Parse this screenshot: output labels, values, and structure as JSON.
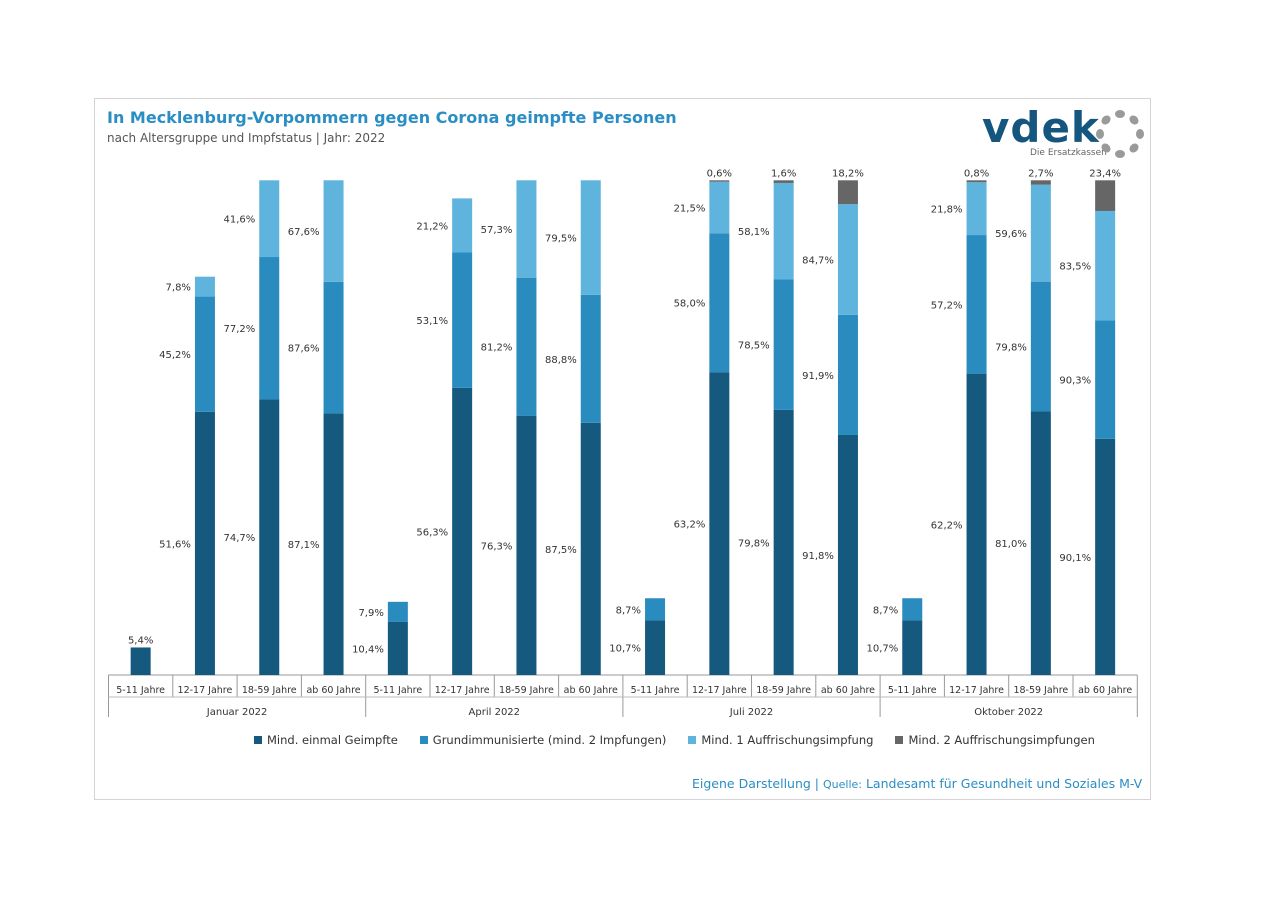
{
  "title": "In Mecklenburg-Vorpommern gegen Corona geimpfte Personen",
  "subtitle": "nach Altersgruppe und Impfstatus | Jahr: 2022",
  "logo": {
    "name": "vdek",
    "tagline": "Die Ersatzkassen"
  },
  "colors": {
    "series": [
      "#15597f",
      "#2a8bbf",
      "#5eb4dc",
      "#666666"
    ],
    "title": "#2a8ec4"
  },
  "source": {
    "prefix": "Eigene Darstellung | ",
    "label": "Quelle:",
    "text": " Landesamt für Gesundheit und Soziales M-V"
  },
  "chart_data": {
    "type": "bar",
    "stacked": "overlapping",
    "ylim": [
      0,
      100
    ],
    "legend_position": "bottom",
    "grid": false,
    "series": [
      {
        "name": "Mind. einmal Geimpfte"
      },
      {
        "name": "Grundimmunisierte (mind. 2 Impfungen)"
      },
      {
        "name": "Mind. 1 Auffrischungsimpfung"
      },
      {
        "name": "Mind. 2 Auffrischungsimpfungen"
      }
    ],
    "groups": [
      {
        "label": "Januar 2022",
        "bars": [
          {
            "category": "5-11 Jahre",
            "values": [
              5.4,
              null,
              null,
              null
            ],
            "labels": [
              "5,4%",
              "",
              "",
              ""
            ]
          },
          {
            "category": "12-17 Jahre",
            "values": [
              51.6,
              45.2,
              7.8,
              null
            ],
            "labels": [
              "51,6%",
              "45,2%",
              "7,8%",
              ""
            ]
          },
          {
            "category": "18-59 Jahre",
            "values": [
              74.7,
              77.2,
              41.6,
              null
            ],
            "labels": [
              "74,7%",
              "77,2%",
              "41,6%",
              ""
            ]
          },
          {
            "category": "ab 60 Jahre",
            "values": [
              87.1,
              87.6,
              67.6,
              null
            ],
            "labels": [
              "87,1%",
              "87,6%",
              "67,6%",
              ""
            ]
          }
        ]
      },
      {
        "label": "April 2022",
        "bars": [
          {
            "category": "5-11 Jahre",
            "values": [
              10.4,
              7.9,
              null,
              null
            ],
            "labels": [
              "10,4%",
              "7,9%",
              "",
              ""
            ]
          },
          {
            "category": "12-17 Jahre",
            "values": [
              56.3,
              53.1,
              21.2,
              null
            ],
            "labels": [
              "56,3%",
              "53,1%",
              "21,2%",
              ""
            ]
          },
          {
            "category": "18-59 Jahre",
            "values": [
              76.3,
              81.2,
              57.3,
              null
            ],
            "labels": [
              "76,3%",
              "81,2%",
              "57,3%",
              ""
            ]
          },
          {
            "category": "ab 60 Jahre",
            "values": [
              87.5,
              88.8,
              79.5,
              null
            ],
            "labels": [
              "87,5%",
              "88,8%",
              "79,5%",
              ""
            ]
          }
        ]
      },
      {
        "label": "Juli 2022",
        "bars": [
          {
            "category": "5-11 Jahre",
            "values": [
              10.7,
              8.7,
              null,
              null
            ],
            "labels": [
              "10,7%",
              "8,7%",
              "",
              ""
            ]
          },
          {
            "category": "12-17 Jahre",
            "values": [
              63.2,
              58.0,
              21.5,
              0.6
            ],
            "labels": [
              "63,2%",
              "58,0%",
              "21,5%",
              "0,6%"
            ]
          },
          {
            "category": "18-59 Jahre",
            "values": [
              79.8,
              78.5,
              58.1,
              1.6
            ],
            "labels": [
              "79,8%",
              "78,5%",
              "58,1%",
              "1,6%"
            ]
          },
          {
            "category": "ab 60 Jahre",
            "values": [
              91.8,
              91.9,
              84.7,
              18.2
            ],
            "labels": [
              "91,8%",
              "91,9%",
              "84,7%",
              "18,2%"
            ]
          }
        ]
      },
      {
        "label": "Oktober 2022",
        "bars": [
          {
            "category": "5-11 Jahre",
            "values": [
              10.7,
              8.7,
              null,
              null
            ],
            "labels": [
              "10,7%",
              "8,7%",
              "",
              ""
            ]
          },
          {
            "category": "12-17 Jahre",
            "values": [
              62.2,
              57.2,
              21.8,
              0.8
            ],
            "labels": [
              "62,2%",
              "57,2%",
              "21,8%",
              "0,8%"
            ]
          },
          {
            "category": "18-59 Jahre",
            "values": [
              81.0,
              79.8,
              59.6,
              2.7
            ],
            "labels": [
              "81,0%",
              "79,8%",
              "59,6%",
              "2,7%"
            ]
          },
          {
            "category": "ab 60 Jahre",
            "values": [
              90.1,
              90.3,
              83.5,
              23.4
            ],
            "labels": [
              "90,1%",
              "90,3%",
              "83,5%",
              "23,4%"
            ]
          }
        ]
      }
    ]
  }
}
